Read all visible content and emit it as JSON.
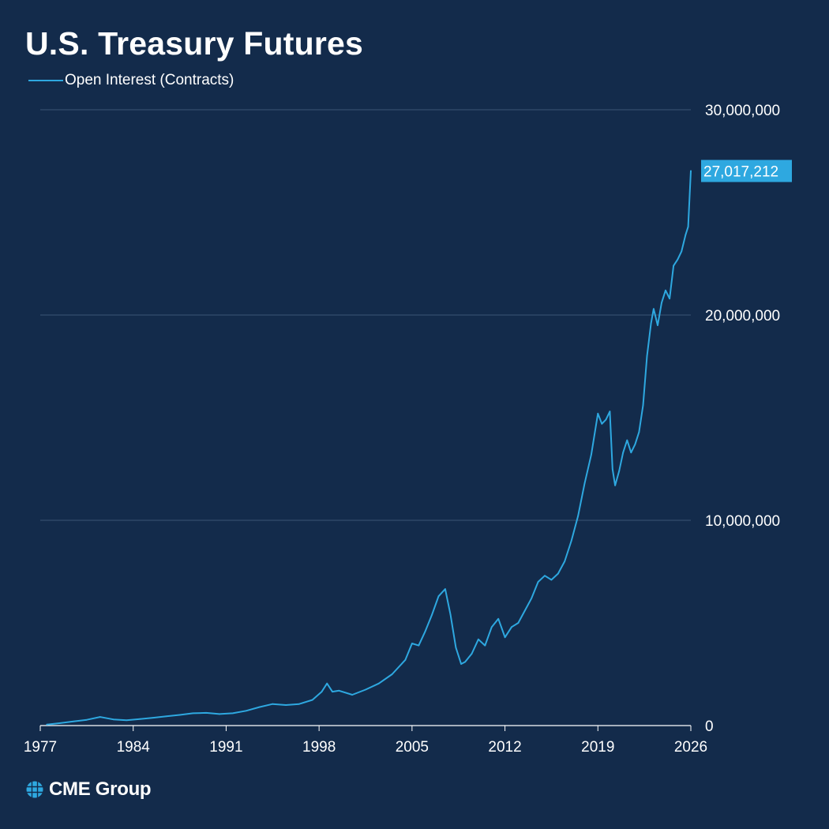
{
  "title": "U.S. Treasury Futures",
  "legend": {
    "label": "Open Interest (Contracts)"
  },
  "logo": {
    "text": "CME Group"
  },
  "colors": {
    "background": "#132b4b",
    "line": "#2ea8e0",
    "gridline": "#3b5675",
    "last_value_badge": "#2ea8e0",
    "text": "#ffffff"
  },
  "chart_data": {
    "type": "line",
    "title": "U.S. Treasury Futures",
    "xlabel": "",
    "ylabel": "",
    "xlim": [
      1977,
      2026
    ],
    "ylim": [
      0,
      30000000
    ],
    "x_ticks": [
      1977,
      1984,
      1991,
      1998,
      2005,
      2012,
      2019,
      2026
    ],
    "x_tick_labels": [
      "1977",
      "1984",
      "1991",
      "1998",
      "2005",
      "2012",
      "2019",
      "2026"
    ],
    "y_ticks": [
      0,
      10000000,
      20000000,
      30000000
    ],
    "y_tick_labels": [
      "0",
      "10,000,000",
      "20,000,000",
      "30,000,000"
    ],
    "y_axis_position": "right",
    "grid": "horizontal",
    "legend_position": "top-left",
    "last_value_label": "27,017,212",
    "series": [
      {
        "name": "Open Interest (Contracts)",
        "x": [
          1977.5,
          1978.5,
          1979.5,
          1980.5,
          1981.5,
          1982.5,
          1983.5,
          1984.5,
          1985.5,
          1986.5,
          1987.5,
          1988.5,
          1989.5,
          1990.5,
          1991.5,
          1992.5,
          1993.5,
          1994.5,
          1995.5,
          1996.5,
          1997.5,
          1998.2,
          1998.6,
          1999.0,
          1999.5,
          2000.5,
          2001.5,
          2002.5,
          2003.5,
          2004.5,
          2005.0,
          2005.5,
          2006.0,
          2006.5,
          2007.0,
          2007.5,
          2007.9,
          2008.3,
          2008.7,
          2009.0,
          2009.5,
          2010.0,
          2010.5,
          2011.0,
          2011.5,
          2012.0,
          2012.5,
          2013.0,
          2013.5,
          2014.0,
          2014.5,
          2015.0,
          2015.5,
          2016.0,
          2016.5,
          2017.0,
          2017.5,
          2018.0,
          2018.5,
          2019.0,
          2019.3,
          2019.6,
          2019.9,
          2020.1,
          2020.3,
          2020.6,
          2020.9,
          2021.2,
          2021.5,
          2021.8,
          2022.1,
          2022.4,
          2022.7,
          2023.0,
          2023.2,
          2023.5,
          2023.8,
          2024.1,
          2024.4,
          2024.7,
          2025.0,
          2025.3,
          2025.6,
          2025.8,
          2026.0
        ],
        "y": [
          50000,
          120000,
          200000,
          280000,
          420000,
          300000,
          260000,
          320000,
          380000,
          450000,
          520000,
          600000,
          620000,
          560000,
          600000,
          720000,
          900000,
          1050000,
          1000000,
          1050000,
          1250000,
          1650000,
          2050000,
          1650000,
          1700000,
          1500000,
          1750000,
          2050000,
          2500000,
          3200000,
          4000000,
          3900000,
          4600000,
          5400000,
          6300000,
          6650000,
          5400000,
          3800000,
          3000000,
          3100000,
          3500000,
          4200000,
          3900000,
          4800000,
          5200000,
          4300000,
          4800000,
          5000000,
          5600000,
          6200000,
          7000000,
          7300000,
          7100000,
          7400000,
          8000000,
          9000000,
          10200000,
          11800000,
          13200000,
          15200000,
          14700000,
          14900000,
          15300000,
          12500000,
          11700000,
          12400000,
          13300000,
          13900000,
          13300000,
          13700000,
          14300000,
          15600000,
          18000000,
          19600000,
          20300000,
          19500000,
          20600000,
          21200000,
          20800000,
          22400000,
          22700000,
          23100000,
          23900000,
          24300000,
          27017212
        ]
      }
    ]
  }
}
